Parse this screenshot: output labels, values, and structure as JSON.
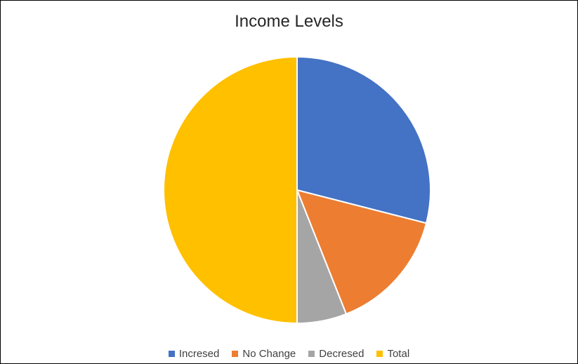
{
  "chart_data": {
    "type": "pie",
    "title": "Income Levels",
    "categories": [
      "Incresed",
      "No Change",
      "Decresed",
      "Total"
    ],
    "values": [
      29,
      15,
      6,
      50
    ],
    "colors": [
      "#4472C4",
      "#ED7D31",
      "#A5A5A5",
      "#FFC000"
    ],
    "legend_position": "bottom"
  }
}
